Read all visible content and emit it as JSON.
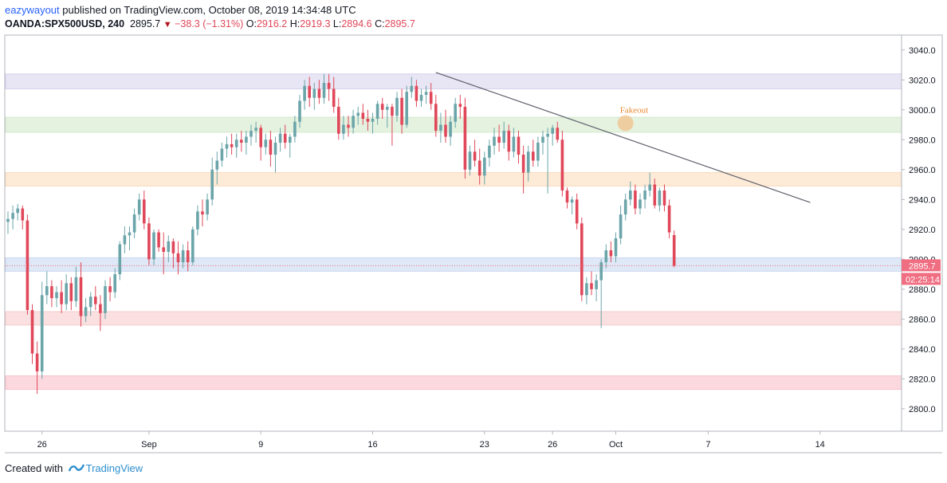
{
  "header": {
    "user": "eazywayout",
    "published": "published on TradingView.com, October 08, 2019 14:34:48 UTC",
    "symbol": "OANDA:SPX500USD, 240",
    "last": "2895.7",
    "change": "−38.3 (−1.31%)",
    "o_label": "O:",
    "o_value": "2916.2",
    "h_label": "H:",
    "h_value": "2919.3",
    "l_label": "L:",
    "l_value": "2894.6",
    "c_label": "C:",
    "c_value": "2895.7"
  },
  "footer": {
    "created_with": "Created with",
    "brand": "TradingView"
  },
  "chart_data": {
    "type": "candlestick",
    "ylim": [
      2785,
      3050
    ],
    "y_ticks": [
      2800,
      2820,
      2840,
      2860,
      2880,
      2900,
      2920,
      2940,
      2960,
      2980,
      3000,
      3020,
      3040
    ],
    "x_ticks": [
      {
        "label": "26",
        "i": 7
      },
      {
        "label": "Sep",
        "i": 29
      },
      {
        "label": "9",
        "i": 52
      },
      {
        "label": "16",
        "i": 75
      },
      {
        "label": "23",
        "i": 98
      },
      {
        "label": "26",
        "i": 112
      },
      {
        "label": "Oct",
        "i": 125
      },
      {
        "label": "7",
        "i": 144
      },
      {
        "label": "14",
        "i": 167
      }
    ],
    "total_slots": 184,
    "colors": {
      "up": "#6ba5aa",
      "down": "#e0485a",
      "price_tag": "#f06e82"
    },
    "zones": [
      {
        "from": 3014,
        "to": 3024,
        "color": "#d8d3ec"
      },
      {
        "from": 2985,
        "to": 2995,
        "color": "#d3e9cc"
      },
      {
        "from": 2949,
        "to": 2958,
        "color": "#fbdcbc"
      },
      {
        "from": 2892,
        "to": 2901,
        "color": "#c9d8f0"
      },
      {
        "from": 2856,
        "to": 2865,
        "color": "#f7cccc"
      },
      {
        "from": 2813,
        "to": 2822,
        "color": "#f9bfc8"
      }
    ],
    "trendline": {
      "from": {
        "i": 88,
        "value": 3025
      },
      "to": {
        "i": 165,
        "value": 2938
      }
    },
    "annotation": {
      "text": "Fakeout",
      "i": 127,
      "value": 2990
    },
    "last_price": {
      "value": 2895.7,
      "label": "2895.7",
      "countdown": "02:25:14"
    },
    "candles": [
      [
        2925,
        2932,
        2917,
        2927
      ],
      [
        2927,
        2936,
        2920,
        2931
      ],
      [
        2931,
        2937,
        2926,
        2934
      ],
      [
        2934,
        2936,
        2920,
        2926
      ],
      [
        2926,
        2930,
        2863,
        2866
      ],
      [
        2866,
        2870,
        2830,
        2837
      ],
      [
        2837,
        2845,
        2810,
        2825
      ],
      [
        2825,
        2885,
        2820,
        2876
      ],
      [
        2876,
        2892,
        2870,
        2882
      ],
      [
        2882,
        2886,
        2868,
        2874
      ],
      [
        2874,
        2882,
        2868,
        2878
      ],
      [
        2878,
        2886,
        2864,
        2870
      ],
      [
        2870,
        2890,
        2866,
        2884
      ],
      [
        2884,
        2888,
        2866,
        2872
      ],
      [
        2872,
        2895,
        2868,
        2888
      ],
      [
        2888,
        2898,
        2855,
        2862
      ],
      [
        2862,
        2874,
        2858,
        2868
      ],
      [
        2868,
        2878,
        2862,
        2875
      ],
      [
        2875,
        2882,
        2866,
        2870
      ],
      [
        2870,
        2876,
        2852,
        2864
      ],
      [
        2864,
        2886,
        2860,
        2882
      ],
      [
        2882,
        2888,
        2872,
        2878
      ],
      [
        2878,
        2894,
        2874,
        2890
      ],
      [
        2890,
        2912,
        2886,
        2910
      ],
      [
        2910,
        2922,
        2904,
        2916
      ],
      [
        2916,
        2922,
        2906,
        2918
      ],
      [
        2918,
        2934,
        2914,
        2930
      ],
      [
        2930,
        2944,
        2926,
        2940
      ],
      [
        2940,
        2946,
        2920,
        2924
      ],
      [
        2924,
        2928,
        2896,
        2900
      ],
      [
        2900,
        2920,
        2896,
        2918
      ],
      [
        2918,
        2920,
        2905,
        2908
      ],
      [
        2908,
        2918,
        2890,
        2905
      ],
      [
        2905,
        2916,
        2898,
        2912
      ],
      [
        2912,
        2914,
        2894,
        2904
      ],
      [
        2904,
        2912,
        2890,
        2898
      ],
      [
        2898,
        2910,
        2894,
        2906
      ],
      [
        2906,
        2912,
        2892,
        2898
      ],
      [
        2898,
        2922,
        2896,
        2920
      ],
      [
        2920,
        2936,
        2916,
        2932
      ],
      [
        2932,
        2940,
        2922,
        2930
      ],
      [
        2930,
        2944,
        2926,
        2940
      ],
      [
        2940,
        2968,
        2936,
        2960
      ],
      [
        2960,
        2972,
        2950,
        2966
      ],
      [
        2966,
        2978,
        2962,
        2974
      ],
      [
        2974,
        2982,
        2968,
        2977
      ],
      [
        2977,
        2984,
        2970,
        2975
      ],
      [
        2975,
        2984,
        2968,
        2980
      ],
      [
        2980,
        2986,
        2972,
        2978
      ],
      [
        2978,
        2986,
        2970,
        2982
      ],
      [
        2982,
        2990,
        2976,
        2986
      ],
      [
        2986,
        2992,
        2978,
        2988
      ],
      [
        2988,
        2990,
        2966,
        2975
      ],
      [
        2975,
        2984,
        2970,
        2980
      ],
      [
        2980,
        2986,
        2962,
        2970
      ],
      [
        2970,
        2982,
        2958,
        2978
      ],
      [
        2978,
        2988,
        2972,
        2984
      ],
      [
        2984,
        2990,
        2974,
        2978
      ],
      [
        2978,
        2984,
        2968,
        2982
      ],
      [
        2982,
        2996,
        2978,
        2992
      ],
      [
        2992,
        3010,
        2988,
        3006
      ],
      [
        3006,
        3020,
        3000,
        3016
      ],
      [
        3016,
        3022,
        3002,
        3008
      ],
      [
        3008,
        3018,
        3000,
        3014
      ],
      [
        3014,
        3020,
        3004,
        3008
      ],
      [
        3008,
        3024,
        3004,
        3018
      ],
      [
        3018,
        3024,
        3006,
        3014
      ],
      [
        3014,
        3022,
        2998,
        3002
      ],
      [
        3002,
        3008,
        2980,
        2984
      ],
      [
        2984,
        2996,
        2980,
        2990
      ],
      [
        2990,
        2996,
        2982,
        2988
      ],
      [
        2988,
        3000,
        2984,
        2996
      ],
      [
        2996,
        3002,
        2990,
        2998
      ],
      [
        2998,
        3004,
        2990,
        2994
      ],
      [
        2994,
        3000,
        2986,
        2992
      ],
      [
        2992,
        2998,
        2984,
        2994
      ],
      [
        2994,
        3006,
        2990,
        3004
      ],
      [
        3004,
        3008,
        2994,
        3000
      ],
      [
        3000,
        3004,
        2988,
        3002
      ],
      [
        3002,
        3004,
        2976,
        2996
      ],
      [
        2996,
        3012,
        2992,
        3008
      ],
      [
        3008,
        3014,
        2984,
        2990
      ],
      [
        2990,
        3016,
        2988,
        3012
      ],
      [
        3012,
        3022,
        3008,
        3016
      ],
      [
        3016,
        3020,
        3002,
        3006
      ],
      [
        3006,
        3014,
        3002,
        3010
      ],
      [
        3010,
        3016,
        3004,
        3012
      ],
      [
        3012,
        3018,
        3000,
        3004
      ],
      [
        3004,
        3010,
        2982,
        2986
      ],
      [
        2986,
        2998,
        2978,
        2990
      ],
      [
        2990,
        3000,
        2978,
        2982
      ],
      [
        2982,
        2996,
        2976,
        2992
      ],
      [
        2992,
        3008,
        2988,
        3004
      ],
      [
        3004,
        3010,
        2994,
        3002
      ],
      [
        3002,
        3008,
        2954,
        2960
      ],
      [
        2960,
        2976,
        2956,
        2972
      ],
      [
        2972,
        2980,
        2962,
        2966
      ],
      [
        2966,
        2974,
        2950,
        2956
      ],
      [
        2956,
        2972,
        2950,
        2968
      ],
      [
        2968,
        2980,
        2962,
        2976
      ],
      [
        2976,
        2988,
        2970,
        2982
      ],
      [
        2982,
        2990,
        2972,
        2978
      ],
      [
        2978,
        2992,
        2974,
        2986
      ],
      [
        2986,
        2990,
        2966,
        2972
      ],
      [
        2972,
        2988,
        2968,
        2982
      ],
      [
        2982,
        2986,
        2964,
        2970
      ],
      [
        2970,
        2976,
        2944,
        2958
      ],
      [
        2958,
        2976,
        2952,
        2972
      ],
      [
        2972,
        2980,
        2962,
        2966
      ],
      [
        2966,
        2982,
        2962,
        2978
      ],
      [
        2978,
        2986,
        2970,
        2982
      ],
      [
        2982,
        2988,
        2944,
        2984
      ],
      [
        2984,
        2990,
        2976,
        2988
      ],
      [
        2988,
        2992,
        2978,
        2980
      ],
      [
        2980,
        2986,
        2942,
        2946
      ],
      [
        2946,
        2948,
        2934,
        2938
      ],
      [
        2938,
        2942,
        2930,
        2940
      ],
      [
        2940,
        2944,
        2920,
        2924
      ],
      [
        2924,
        2928,
        2872,
        2876
      ],
      [
        2876,
        2888,
        2870,
        2884
      ],
      [
        2884,
        2892,
        2876,
        2880
      ],
      [
        2880,
        2890,
        2872,
        2886
      ],
      [
        2886,
        2900,
        2854,
        2898
      ],
      [
        2898,
        2910,
        2894,
        2906
      ],
      [
        2906,
        2912,
        2898,
        2902
      ],
      [
        2902,
        2918,
        2898,
        2914
      ],
      [
        2914,
        2936,
        2910,
        2930
      ],
      [
        2930,
        2944,
        2926,
        2940
      ],
      [
        2940,
        2952,
        2936,
        2946
      ],
      [
        2946,
        2950,
        2930,
        2934
      ],
      [
        2934,
        2944,
        2930,
        2940
      ],
      [
        2940,
        2950,
        2934,
        2946
      ],
      [
        2946,
        2958,
        2942,
        2950
      ],
      [
        2950,
        2954,
        2934,
        2936
      ],
      [
        2936,
        2948,
        2932,
        2946
      ],
      [
        2946,
        2950,
        2932,
        2936
      ],
      [
        2936,
        2940,
        2914,
        2918
      ],
      [
        2916.2,
        2919.3,
        2894.6,
        2895.7
      ]
    ]
  }
}
